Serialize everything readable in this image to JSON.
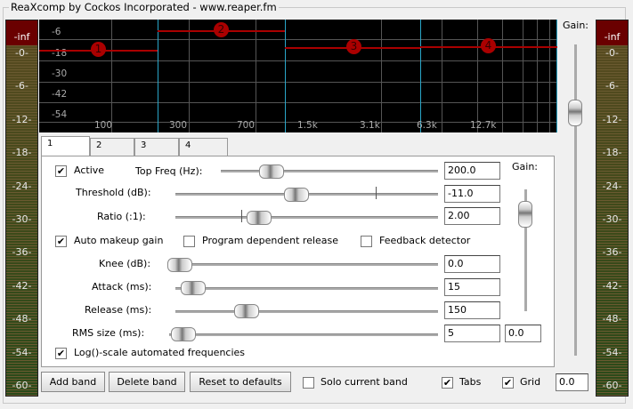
{
  "window": {
    "title": "ReaXcomp by Cockos Incorporated - www.reaper.fm"
  },
  "meters": {
    "top": "-inf",
    "ticks": [
      "-0-",
      "-6-",
      "-12-",
      "-18-",
      "-24-",
      "-30-",
      "-36-",
      "-42-",
      "-48-",
      "-54-",
      "-60-"
    ]
  },
  "graph": {
    "db_labels": [
      "-6",
      "-18",
      "-30",
      "-42",
      "-54"
    ],
    "freq_labels": [
      "100",
      "300",
      "700",
      "1.5k",
      "3.1k",
      "6.3k",
      "12.7k"
    ],
    "bands": [
      "1",
      "2",
      "3",
      "4"
    ],
    "band_color": "#aa0000",
    "crossover_color": "#2aa6c8"
  },
  "output_gain": {
    "label": "Gain:",
    "level_percent": 79
  },
  "tabs": [
    {
      "label": "1"
    },
    {
      "label": "2"
    },
    {
      "label": "3"
    },
    {
      "label": "4"
    }
  ],
  "band": {
    "active_label": "Active",
    "active": true,
    "top_freq": {
      "label": "Top Freq (Hz):",
      "value": "200.0"
    },
    "threshold": {
      "label": "Threshold (dB):",
      "value": "-11.0"
    },
    "ratio": {
      "label": "Ratio (:1):",
      "value": "2.00"
    },
    "auto_makeup": {
      "label": "Auto makeup gain",
      "checked": true
    },
    "program_release": {
      "label": "Program dependent release",
      "checked": false
    },
    "feedback": {
      "label": "Feedback detector",
      "checked": false
    },
    "knee": {
      "label": "Knee (dB):",
      "value": "0.0"
    },
    "attack": {
      "label": "Attack (ms):",
      "value": "15"
    },
    "release": {
      "label": "Release (ms):",
      "value": "150"
    },
    "rms": {
      "label": "RMS size (ms):",
      "value": "5"
    },
    "gain": {
      "label": "Gain:",
      "value": "0.0"
    },
    "log_scale": {
      "label": "Log()-scale automated frequencies",
      "checked": true
    }
  },
  "footer": {
    "add_band": "Add band",
    "delete_band": "Delete band",
    "reset": "Reset to defaults",
    "solo": {
      "label": "Solo current band",
      "checked": false
    },
    "tabs": {
      "label": "Tabs",
      "checked": true
    },
    "grid": {
      "label": "Grid",
      "checked": true
    },
    "gain_value": "0.0"
  }
}
